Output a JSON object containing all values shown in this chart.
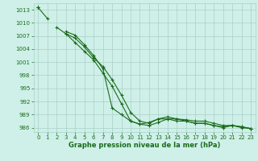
{
  "x": [
    0,
    1,
    2,
    3,
    4,
    5,
    6,
    7,
    8,
    9,
    10,
    11,
    12,
    13,
    14,
    15,
    16,
    17,
    18,
    19,
    20,
    21,
    22,
    23
  ],
  "line1": [
    1013.5,
    1011.0,
    null,
    1008.0,
    1007.2,
    1005.0,
    1002.5,
    999.5,
    990.5,
    989.0,
    987.5,
    986.8,
    987.2,
    988.0,
    988.0,
    987.5,
    987.5,
    987.0,
    987.0,
    986.5,
    986.2,
    986.5,
    986.0,
    985.8
  ],
  "line2": [
    1013.5,
    null,
    1009.0,
    1007.5,
    1005.5,
    1003.5,
    1001.5,
    998.5,
    995.5,
    991.5,
    987.5,
    986.8,
    986.5,
    987.2,
    988.0,
    988.0,
    987.5,
    987.0,
    987.0,
    986.5,
    986.0,
    986.5,
    986.2,
    985.8
  ],
  "line3": [
    1013.5,
    null,
    null,
    1007.5,
    1006.5,
    1004.5,
    1002.0,
    1000.0,
    997.0,
    993.5,
    989.5,
    987.5,
    987.0,
    988.0,
    988.5,
    988.0,
    987.8,
    987.5,
    987.5,
    987.0,
    986.5,
    986.5,
    986.2,
    985.8
  ],
  "line_color": "#1a6b1a",
  "bg_color": "#cef0e8",
  "grid_color": "#aad0c8",
  "xlabel": "Graphe pression niveau de la mer (hPa)",
  "ylim": [
    985.0,
    1014.5
  ],
  "yticks": [
    986,
    989,
    992,
    995,
    998,
    1001,
    1004,
    1007,
    1010,
    1013
  ],
  "xticks": [
    0,
    1,
    2,
    3,
    4,
    5,
    6,
    7,
    8,
    9,
    10,
    11,
    12,
    13,
    14,
    15,
    16,
    17,
    18,
    19,
    20,
    21,
    22,
    23
  ],
  "marker": "+",
  "markersize": 3,
  "linewidth": 0.8,
  "tick_fontsize": 5,
  "xlabel_fontsize": 6
}
